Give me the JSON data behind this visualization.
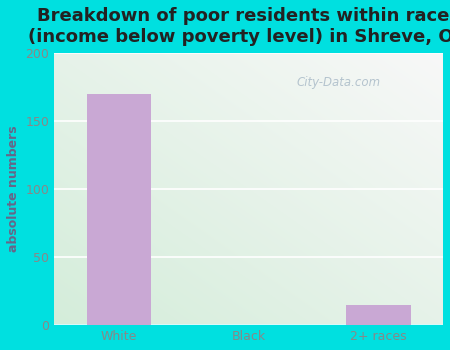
{
  "title": "Breakdown of poor residents within races\n(income below poverty level) in Shreve, OH",
  "categories": [
    "White",
    "Black",
    "2+ races"
  ],
  "values": [
    170,
    0,
    15
  ],
  "bar_color": "#c9a8d4",
  "ylabel": "absolute numbers",
  "ylim": [
    0,
    200
  ],
  "yticks": [
    0,
    50,
    100,
    150,
    200
  ],
  "bg_outer": "#00e0e0",
  "bg_plot_topleft": "#e8f5e9",
  "bg_plot_topright": "#f5f5f5",
  "bg_plot_bottomleft": "#d4edda",
  "bg_plot_bottomright": "#f0f0f0",
  "watermark": "City-Data.com",
  "title_fontsize": 13,
  "axis_label_fontsize": 9,
  "tick_fontsize": 9,
  "title_color": "#222222",
  "ylabel_color": "#666688",
  "tick_color": "#888888"
}
